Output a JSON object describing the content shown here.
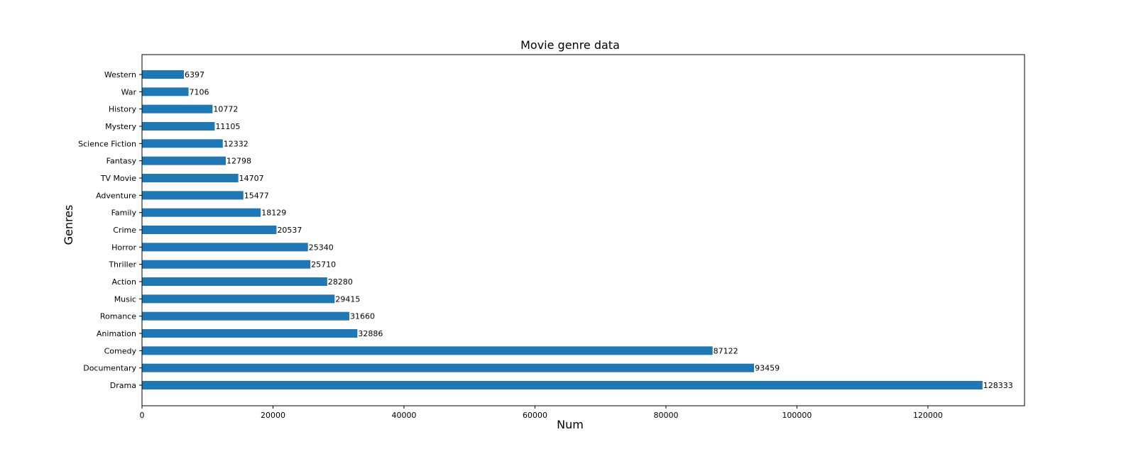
{
  "chart_data": {
    "type": "bar",
    "orientation": "horizontal",
    "title": "Movie genre data",
    "xlabel": "Num",
    "ylabel": "Genres",
    "categories": [
      "Drama",
      "Documentary",
      "Comedy",
      "Animation",
      "Romance",
      "Music",
      "Action",
      "Thriller",
      "Horror",
      "Crime",
      "Family",
      "Adventure",
      "TV Movie",
      "Fantasy",
      "Science Fiction",
      "Mystery",
      "History",
      "War",
      "Western"
    ],
    "values": [
      128333,
      93459,
      87122,
      32886,
      31660,
      29415,
      28280,
      25710,
      25340,
      20537,
      18129,
      15477,
      14707,
      12798,
      12332,
      11105,
      10772,
      7106,
      6397
    ],
    "xlim": [
      0,
      134750
    ],
    "xticks": [
      0,
      20000,
      40000,
      60000,
      80000,
      100000,
      120000
    ],
    "bar_color": "#1f77b4",
    "grid": false,
    "legend": "none"
  }
}
